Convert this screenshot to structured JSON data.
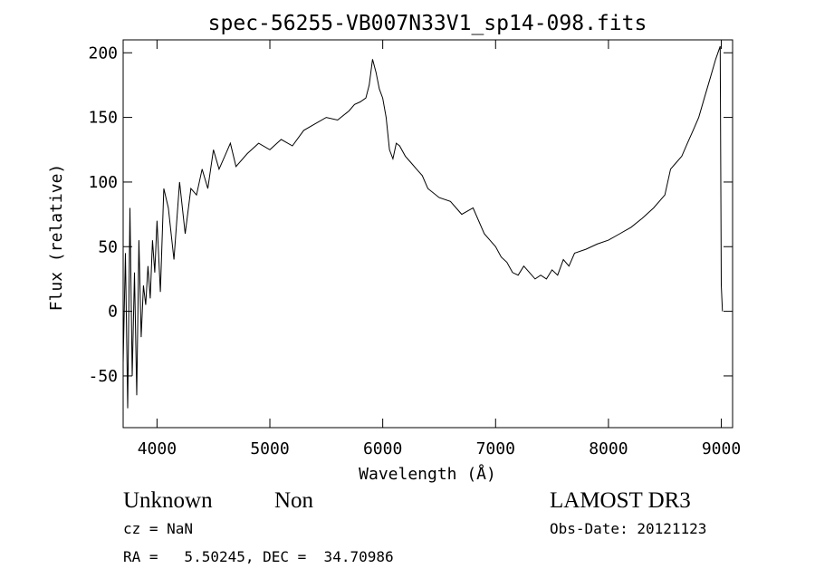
{
  "chart_data": {
    "type": "line",
    "title": "spec-56255-VB007N33V1_sp14-098.fits",
    "xlabel": "Wavelength (Å)",
    "ylabel": "Flux (relative)",
    "xlim": [
      3700,
      9100
    ],
    "ylim": [
      -90,
      210
    ],
    "xticks": [
      4000,
      5000,
      6000,
      7000,
      8000,
      9000
    ],
    "yticks": [
      -50,
      0,
      50,
      100,
      150,
      200
    ],
    "grid": false,
    "series": [
      {
        "x": [
          3700,
          3720,
          3740,
          3760,
          3780,
          3800,
          3820,
          3840,
          3860,
          3880,
          3900,
          3920,
          3940,
          3960,
          3980,
          4000,
          4030,
          4060,
          4100,
          4150,
          4200,
          4250,
          4300,
          4350,
          4400,
          4450,
          4500,
          4550,
          4600,
          4650,
          4700,
          4800,
          4900,
          5000,
          5100,
          5200,
          5300,
          5400,
          5500,
          5600,
          5700,
          5750,
          5800,
          5850,
          5880,
          5910,
          5940,
          5970,
          6000,
          6030,
          6060,
          6090,
          6120,
          6150,
          6200,
          6250,
          6300,
          6350,
          6400,
          6500,
          6600,
          6700,
          6800,
          6900,
          6950,
          7000,
          7050,
          7100,
          7150,
          7200,
          7250,
          7300,
          7350,
          7400,
          7450,
          7500,
          7550,
          7600,
          7650,
          7700,
          7800,
          7900,
          8000,
          8100,
          8200,
          8300,
          8400,
          8500,
          8550,
          8600,
          8650,
          8700,
          8750,
          8800,
          8850,
          8900,
          8950,
          8990,
          9000,
          9010
        ],
        "y": [
          -40,
          45,
          -75,
          80,
          -50,
          30,
          -65,
          55,
          -20,
          20,
          5,
          35,
          10,
          55,
          30,
          70,
          15,
          95,
          80,
          40,
          100,
          60,
          95,
          90,
          110,
          95,
          125,
          110,
          120,
          130,
          112,
          122,
          130,
          125,
          133,
          128,
          140,
          145,
          150,
          148,
          155,
          160,
          162,
          165,
          175,
          195,
          185,
          172,
          165,
          150,
          125,
          118,
          130,
          128,
          120,
          115,
          110,
          105,
          95,
          88,
          85,
          75,
          80,
          60,
          55,
          50,
          42,
          38,
          30,
          28,
          35,
          30,
          25,
          28,
          25,
          32,
          28,
          40,
          35,
          45,
          48,
          52,
          55,
          60,
          65,
          72,
          80,
          90,
          110,
          115,
          120,
          130,
          140,
          150,
          165,
          180,
          195,
          205,
          20,
          0
        ]
      }
    ]
  },
  "footer": {
    "object_class": "Unknown",
    "subclass": "Non",
    "survey": "LAMOST DR3",
    "cz": "cz = NaN",
    "obs_date": "Obs-Date: 20121123",
    "coords": "RA =   5.50245, DEC =  34.70986"
  }
}
